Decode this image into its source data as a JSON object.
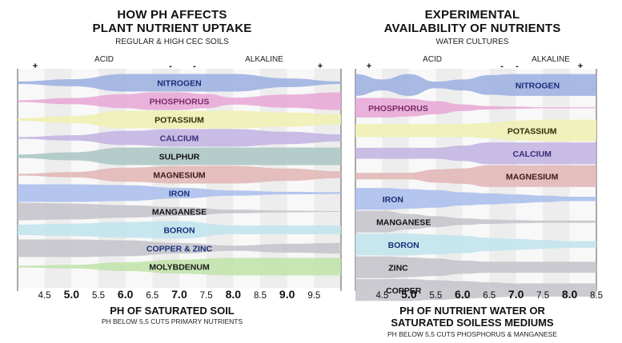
{
  "chart_data": [
    {
      "type": "area",
      "title": "HOW PH AFFECTS\nPLANT NUTRIENT UPTAKE",
      "subtitle": "REGULAR & HIGH CEC SOILS",
      "xlabel": "PH OF SATURATED SOIL",
      "xnote": "PH BELOW 5,5 CUTS PRIMARY NUTRIENTS",
      "acid_label": "ACID",
      "alkaline_label": "ALKALINE",
      "scale_marks": [
        "+",
        "-",
        "-",
        "+"
      ],
      "x_ticks": [
        {
          "v": 4.5,
          "label": "4.5",
          "major": false
        },
        {
          "v": 5.0,
          "label": "5.0",
          "major": true
        },
        {
          "v": 5.5,
          "label": "5.5",
          "major": false
        },
        {
          "v": 6.0,
          "label": "6.0",
          "major": true
        },
        {
          "v": 6.5,
          "label": "6.5",
          "major": false
        },
        {
          "v": 7.0,
          "label": "7.0",
          "major": true
        },
        {
          "v": 7.5,
          "label": "7.5",
          "major": false
        },
        {
          "v": 8.0,
          "label": "8.0",
          "major": true
        },
        {
          "v": 8.5,
          "label": "8.5",
          "major": false
        },
        {
          "v": 9.0,
          "label": "9.0",
          "major": true
        },
        {
          "v": 9.5,
          "label": "9.5",
          "major": false
        }
      ],
      "xlim": [
        4.0,
        10.0
      ],
      "series": [
        {
          "name": "NITROGEN",
          "label_x": 7.0,
          "color": "#9aaee0",
          "text_color": "#1a2f7a",
          "x": [
            4.0,
            5.0,
            6.0,
            7.0,
            8.0,
            9.0,
            10.0
          ],
          "values": [
            0.15,
            0.4,
            1.0,
            1.0,
            1.0,
            0.5,
            0.15
          ]
        },
        {
          "name": "PHOSPHORUS",
          "label_x": 7.0,
          "color": "#e7a6d6",
          "text_color": "#7a2c68",
          "x": [
            4.0,
            5.0,
            6.0,
            6.5,
            7.0,
            7.5,
            8.0,
            9.0,
            10.0
          ],
          "values": [
            0.1,
            0.35,
            0.8,
            1.0,
            1.0,
            0.8,
            0.4,
            0.75,
            1.0
          ]
        },
        {
          "name": "POTASSIUM",
          "label_x": 7.0,
          "color": "#eef0b0",
          "text_color": "#2d2d0a",
          "x": [
            4.0,
            5.0,
            6.0,
            7.0,
            8.0,
            9.0,
            10.0
          ],
          "values": [
            0.15,
            0.4,
            1.0,
            1.0,
            1.0,
            0.8,
            0.6
          ]
        },
        {
          "name": "CALCIUM",
          "label_x": 7.0,
          "color": "#c1b2e2",
          "text_color": "#3b2c7a",
          "x": [
            4.0,
            5.0,
            6.0,
            7.0,
            8.0,
            9.0,
            10.0
          ],
          "values": [
            0.1,
            0.3,
            0.8,
            1.0,
            1.0,
            0.7,
            0.4
          ]
        },
        {
          "name": "SULPHUR",
          "label_x": 7.0,
          "color": "#a9c6c2",
          "text_color": "#111111",
          "x": [
            4.0,
            5.0,
            6.0,
            7.0,
            8.0,
            9.0,
            10.0
          ],
          "values": [
            0.2,
            0.45,
            1.0,
            1.0,
            1.0,
            1.0,
            1.0
          ]
        },
        {
          "name": "MAGNESIUM",
          "label_x": 7.0,
          "color": "#e2b4b4",
          "text_color": "#3a1a1a",
          "x": [
            4.0,
            5.0,
            6.0,
            7.0,
            8.0,
            9.0,
            10.0
          ],
          "values": [
            0.1,
            0.3,
            0.8,
            1.0,
            1.0,
            0.7,
            0.4
          ]
        },
        {
          "name": "IRON",
          "label_x": 7.0,
          "color": "#a8bcec",
          "text_color": "#1a2f7a",
          "x": [
            4.0,
            5.0,
            6.0,
            7.0,
            8.0,
            9.0,
            10.0
          ],
          "values": [
            1.0,
            1.0,
            0.9,
            0.6,
            0.3,
            0.15,
            0.1
          ]
        },
        {
          "name": "MANGANESE",
          "label_x": 7.0,
          "color": "#c2c2c9",
          "text_color": "#111111",
          "x": [
            4.0,
            5.0,
            6.0,
            7.0,
            8.0,
            9.0,
            10.0
          ],
          "values": [
            1.0,
            0.9,
            0.7,
            0.5,
            0.2,
            0.1,
            0.05
          ]
        },
        {
          "name": "BORON",
          "label_x": 7.0,
          "color": "#bfe3ec",
          "text_color": "#1a2f7a",
          "x": [
            4.0,
            5.0,
            6.0,
            7.0,
            8.0,
            9.0,
            10.0
          ],
          "values": [
            0.6,
            0.7,
            0.9,
            1.0,
            0.5,
            0.5,
            0.5
          ]
        },
        {
          "name": "COPPER & ZINC",
          "label_x": 7.0,
          "color": "#c2c2c9",
          "text_color": "#1a2f7a",
          "x": [
            4.0,
            5.0,
            6.0,
            7.0,
            8.0,
            9.0,
            10.0
          ],
          "values": [
            1.0,
            1.0,
            0.9,
            0.6,
            0.3,
            0.5,
            0.6
          ]
        },
        {
          "name": "MOLYBDENUM",
          "label_x": 7.0,
          "color": "#bfe3a8",
          "text_color": "#1a1a1a",
          "x": [
            4.0,
            5.0,
            6.0,
            7.0,
            8.0,
            9.0,
            10.0
          ],
          "values": [
            0.1,
            0.2,
            0.5,
            0.8,
            1.0,
            1.0,
            1.0
          ]
        }
      ]
    },
    {
      "type": "area",
      "title": "EXPERIMENTAL\nAVAILABILITY OF NUTRIENTS",
      "subtitle": "WATER CULTURES",
      "xlabel": "PH OF NUTRIENT WATER OR\nSATURATED SOILESS MEDIUMS",
      "xnote": "PH BELOW 5,5 CUTS PHOSPHORUS & MANGANESE",
      "acid_label": "ACID",
      "alkaline_label": "ALKALINE",
      "scale_marks": [
        "+",
        "-",
        "-",
        "+"
      ],
      "x_ticks": [
        {
          "v": 4.5,
          "label": "4.5",
          "major": false
        },
        {
          "v": 5.0,
          "label": "5.0",
          "major": true
        },
        {
          "v": 5.5,
          "label": "5.5",
          "major": false
        },
        {
          "v": 6.0,
          "label": "6.0",
          "major": true
        },
        {
          "v": 6.5,
          "label": "6.5",
          "major": false
        },
        {
          "v": 7.0,
          "label": "7.0",
          "major": true
        },
        {
          "v": 7.5,
          "label": "7.5",
          "major": false
        },
        {
          "v": 8.0,
          "label": "8.0",
          "major": true
        },
        {
          "v": 8.5,
          "label": "8.5",
          "major": false
        }
      ],
      "xlim": [
        4.0,
        8.5
      ],
      "series": [
        {
          "name": "NITROGEN",
          "label_x": 7.4,
          "color": "#9aaee0",
          "text_color": "#1a2f7a",
          "x": [
            4.0,
            4.5,
            5.0,
            5.5,
            6.0,
            6.5,
            7.0,
            7.5,
            8.0,
            8.5
          ],
          "values": [
            1.0,
            0.5,
            1.0,
            0.3,
            0.5,
            0.9,
            1.0,
            1.0,
            1.0,
            1.0
          ]
        },
        {
          "name": "PHOSPHORUS",
          "label_x": 4.8,
          "color": "#e7a6d6",
          "text_color": "#7a2c68",
          "x": [
            4.0,
            4.5,
            5.0,
            5.5,
            6.0,
            6.5,
            7.0,
            7.5,
            8.0,
            8.5
          ],
          "values": [
            0.9,
            0.9,
            0.8,
            0.6,
            0.3,
            0.15,
            0.1,
            0.05,
            0.05,
            0.05
          ]
        },
        {
          "name": "POTASSIUM",
          "label_x": 7.3,
          "color": "#eef0b0",
          "text_color": "#2d2d0a",
          "x": [
            4.0,
            4.5,
            5.0,
            5.5,
            6.0,
            6.5,
            7.0,
            7.5,
            8.0,
            8.5
          ],
          "values": [
            0.6,
            0.6,
            0.6,
            0.6,
            0.6,
            0.7,
            0.9,
            1.0,
            1.0,
            1.0
          ]
        },
        {
          "name": "CALCIUM",
          "label_x": 7.3,
          "color": "#c1b2e2",
          "text_color": "#3b2c7a",
          "x": [
            4.0,
            4.5,
            5.0,
            5.5,
            6.0,
            6.5,
            7.0,
            7.5,
            8.0,
            8.5
          ],
          "values": [
            0.5,
            0.5,
            0.5,
            0.5,
            0.7,
            1.0,
            1.0,
            1.0,
            1.0,
            1.0
          ]
        },
        {
          "name": "MAGNESIUM",
          "label_x": 7.3,
          "color": "#e2b4b4",
          "text_color": "#3a1a1a",
          "x": [
            4.0,
            4.5,
            5.0,
            5.5,
            6.0,
            6.5,
            7.0,
            7.5,
            8.0,
            8.5
          ],
          "values": [
            0.3,
            0.3,
            0.3,
            0.6,
            0.7,
            1.0,
            1.0,
            1.0,
            1.0,
            1.0
          ]
        },
        {
          "name": "IRON",
          "label_x": 4.7,
          "color": "#a8bcec",
          "text_color": "#1a2f7a",
          "x": [
            4.0,
            4.5,
            5.0,
            5.5,
            6.0,
            6.5,
            7.0,
            7.5,
            8.0,
            8.5
          ],
          "values": [
            1.0,
            1.0,
            0.9,
            0.8,
            0.6,
            0.5,
            0.4,
            0.3,
            0.2,
            0.2
          ]
        },
        {
          "name": "MANGANESE",
          "label_x": 4.9,
          "color": "#c2c2c9",
          "text_color": "#111111",
          "x": [
            4.0,
            4.5,
            5.0,
            5.5,
            6.0,
            6.5,
            7.0,
            7.5,
            8.0,
            8.5
          ],
          "values": [
            1.0,
            1.0,
            0.7,
            0.5,
            0.3,
            0.2,
            0.15,
            0.1,
            0.1,
            0.1
          ]
        },
        {
          "name": "BORON",
          "label_x": 4.9,
          "color": "#bfe3ec",
          "text_color": "#1a2f7a",
          "x": [
            4.0,
            4.5,
            5.0,
            5.5,
            6.0,
            6.5,
            7.0,
            7.5,
            8.0,
            8.5
          ],
          "values": [
            1.0,
            1.0,
            1.0,
            0.9,
            0.8,
            0.6,
            0.5,
            0.4,
            0.3,
            0.3
          ]
        },
        {
          "name": "ZINC",
          "label_x": 4.8,
          "color": "#c2c2c9",
          "text_color": "#111111",
          "x": [
            4.0,
            4.5,
            5.0,
            5.5,
            6.0,
            6.5,
            7.0,
            7.5,
            8.0,
            8.5
          ],
          "values": [
            1.0,
            1.0,
            0.9,
            0.8,
            0.6,
            0.5,
            0.5,
            0.5,
            0.5,
            0.5
          ]
        },
        {
          "name": "COPPER",
          "label_x": 4.9,
          "color": "#c2c2c9",
          "text_color": "#111111",
          "x": [
            4.0,
            4.5,
            5.0,
            5.5,
            6.0,
            6.5,
            7.0,
            7.5,
            8.0,
            8.5
          ],
          "values": [
            1.0,
            1.0,
            1.0,
            0.9,
            0.8,
            0.7,
            0.6,
            0.6,
            0.6,
            0.6
          ]
        }
      ]
    }
  ]
}
